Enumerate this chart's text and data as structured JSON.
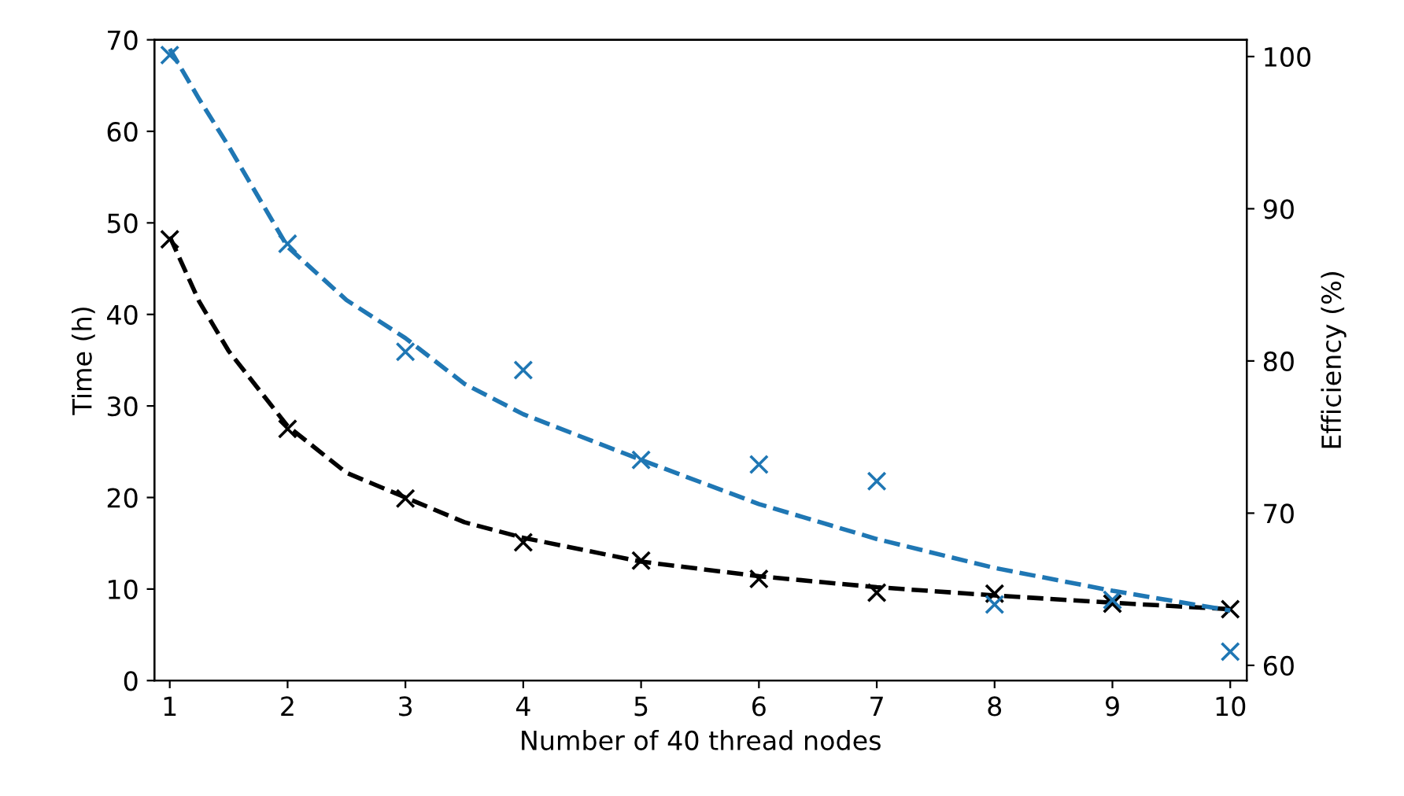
{
  "chart_data": {
    "type": "scatter",
    "xlabel": "Number of 40 thread nodes",
    "ylabel": "Time (h)",
    "y2label": "Efficiency (%)",
    "xlim": [
      0.87,
      10.14
    ],
    "xticks": [
      1,
      2,
      3,
      4,
      5,
      6,
      7,
      8,
      9,
      10
    ],
    "ylim": [
      0,
      70
    ],
    "yticks": [
      0,
      10,
      20,
      30,
      40,
      50,
      60,
      70
    ],
    "y2lim": [
      59.0,
      101.1
    ],
    "y2ticks": [
      60,
      70,
      80,
      90,
      100
    ],
    "grid": false,
    "legend": false,
    "series": [
      {
        "type": "line",
        "color": "#000000",
        "line_style": "dashed",
        "marker": "none",
        "x": [
          1,
          1.25,
          1.5,
          2,
          2.5,
          3,
          3.5,
          4,
          5,
          6,
          7,
          8,
          9,
          10
        ],
        "values": [
          48.5,
          41.4,
          36.0,
          27.8,
          22.7,
          20.0,
          17.3,
          15.6,
          13.0,
          11.4,
          10.2,
          9.3,
          8.5,
          7.8
        ]
      },
      {
        "color": "#000000",
        "marker": "cross",
        "x": [
          1,
          2,
          3,
          4,
          5,
          6,
          7,
          8,
          9,
          10
        ],
        "values": [
          48.2,
          27.5,
          19.9,
          15.1,
          13.1,
          11.1,
          9.6,
          9.5,
          8.4,
          7.8
        ]
      },
      {
        "type": "line",
        "axis": "y2",
        "color": "#1f77b4",
        "line_style": "dashed",
        "marker": "none",
        "x": [
          1,
          1.25,
          1.5,
          2,
          2.5,
          3,
          3.5,
          4,
          5,
          6,
          7,
          8,
          9,
          10
        ],
        "values": [
          100.5,
          97.2,
          94.1,
          87.5,
          84.0,
          81.5,
          78.5,
          76.5,
          73.5,
          70.6,
          68.3,
          66.4,
          64.9,
          63.6
        ]
      },
      {
        "axis": "y2",
        "color": "#1f77b4",
        "marker": "cross",
        "x": [
          1,
          2,
          3,
          4,
          5,
          6,
          7,
          8,
          9,
          10
        ],
        "values": [
          100.1,
          87.7,
          80.6,
          79.4,
          73.5,
          73.2,
          72.1,
          64.0,
          64.3,
          60.9
        ]
      }
    ]
  }
}
